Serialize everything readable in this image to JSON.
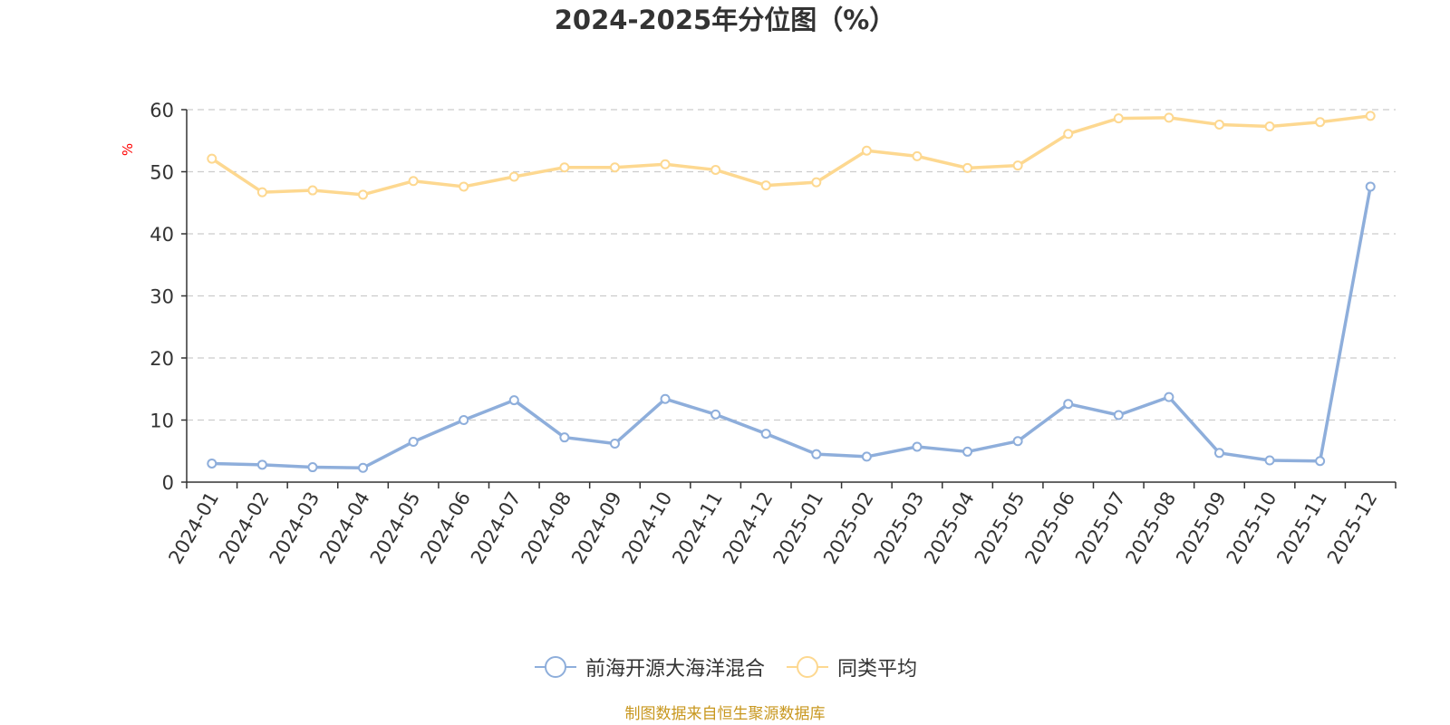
{
  "title": "2024-2025年分位图（%）",
  "y_unit_label": "%",
  "source_note": "制图数据来自恒生聚源数据库",
  "chart_data": {
    "type": "line",
    "title": "2024-2025年分位图（%）",
    "ylabel": "%",
    "ylim": [
      0,
      60
    ],
    "yticks": [
      0,
      10,
      20,
      30,
      40,
      50,
      60
    ],
    "grid": true,
    "legend": "bottom-center",
    "categories": [
      "2024-01",
      "2024-02",
      "2024-03",
      "2024-04",
      "2024-05",
      "2024-06",
      "2024-07",
      "2024-08",
      "2024-09",
      "2024-10",
      "2024-11",
      "2024-12",
      "2025-01",
      "2025-02",
      "2025-03",
      "2025-04",
      "2025-05",
      "2025-06",
      "2025-07",
      "2025-08",
      "2025-09",
      "2025-10",
      "2025-11",
      "2025-12"
    ],
    "series": [
      {
        "name": "前海开源大海洋混合",
        "color": "#8eaedb",
        "values": [
          3.0,
          2.8,
          2.4,
          2.3,
          6.5,
          10.0,
          13.2,
          7.2,
          6.2,
          13.4,
          10.9,
          7.8,
          4.5,
          4.1,
          5.7,
          4.9,
          6.6,
          12.6,
          10.8,
          13.7,
          4.7,
          3.5,
          3.4,
          47.6
        ]
      },
      {
        "name": "同类平均",
        "color": "#fdd890",
        "values": [
          52.1,
          46.7,
          47.0,
          46.3,
          48.5,
          47.6,
          49.2,
          50.7,
          50.7,
          51.2,
          50.3,
          47.8,
          48.3,
          53.4,
          52.5,
          50.6,
          51.0,
          56.1,
          58.6,
          58.7,
          57.6,
          57.3,
          58.0,
          59.0
        ]
      }
    ]
  }
}
